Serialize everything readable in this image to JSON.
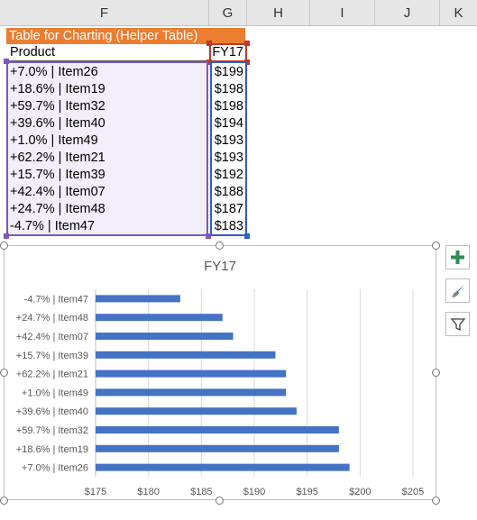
{
  "columns": [
    "F",
    "G",
    "H",
    "I",
    "J",
    "K"
  ],
  "table": {
    "title": "Table for Charting (Helper Table)",
    "header_product": "Product",
    "header_value": "FY17",
    "rows": [
      {
        "product": "+7.0% | Item26",
        "value": "$199"
      },
      {
        "product": "+18.6% | Item19",
        "value": "$198"
      },
      {
        "product": "+59.7% | Item32",
        "value": "$198"
      },
      {
        "product": "+39.6% | Item40",
        "value": "$194"
      },
      {
        "product": "+1.0% | Item49",
        "value": "$193"
      },
      {
        "product": "+62.2% | Item21",
        "value": "$193"
      },
      {
        "product": "+15.7% | Item39",
        "value": "$192"
      },
      {
        "product": "+42.4% | Item07",
        "value": "$188"
      },
      {
        "product": "+24.7% | Item48",
        "value": "$187"
      },
      {
        "product": "-4.7% | Item47",
        "value": "$183"
      }
    ]
  },
  "colors": {
    "title_fill": "#ed7d31",
    "bar": "#4472c4",
    "product_range_border": "#7e57c2",
    "value_range_border": "#2f5fbf",
    "header_border": "#c0392b",
    "plus_icon": "#2e8b57"
  },
  "chart_buttons": [
    {
      "icon": "plus-icon"
    },
    {
      "icon": "brush-icon"
    },
    {
      "icon": "filter-icon"
    }
  ],
  "chart_data": {
    "type": "bar",
    "orientation": "horizontal",
    "title": "FY17",
    "categories": [
      "+7.0% | Item26",
      "+18.6% | Item19",
      "+59.7% | Item32",
      "+39.6% | Item40",
      "+1.0% | Item49",
      "+62.2% | Item21",
      "+15.7% | Item39",
      "+42.4% | Item07",
      "+24.7% | Item48",
      "-4.7% | Item47"
    ],
    "values": [
      199,
      198,
      198,
      194,
      193,
      193,
      192,
      188,
      187,
      183
    ],
    "xlim": [
      175,
      205
    ],
    "xticks": [
      "$175",
      "$180",
      "$185",
      "$190",
      "$195",
      "$200",
      "$205"
    ],
    "grid": true
  }
}
